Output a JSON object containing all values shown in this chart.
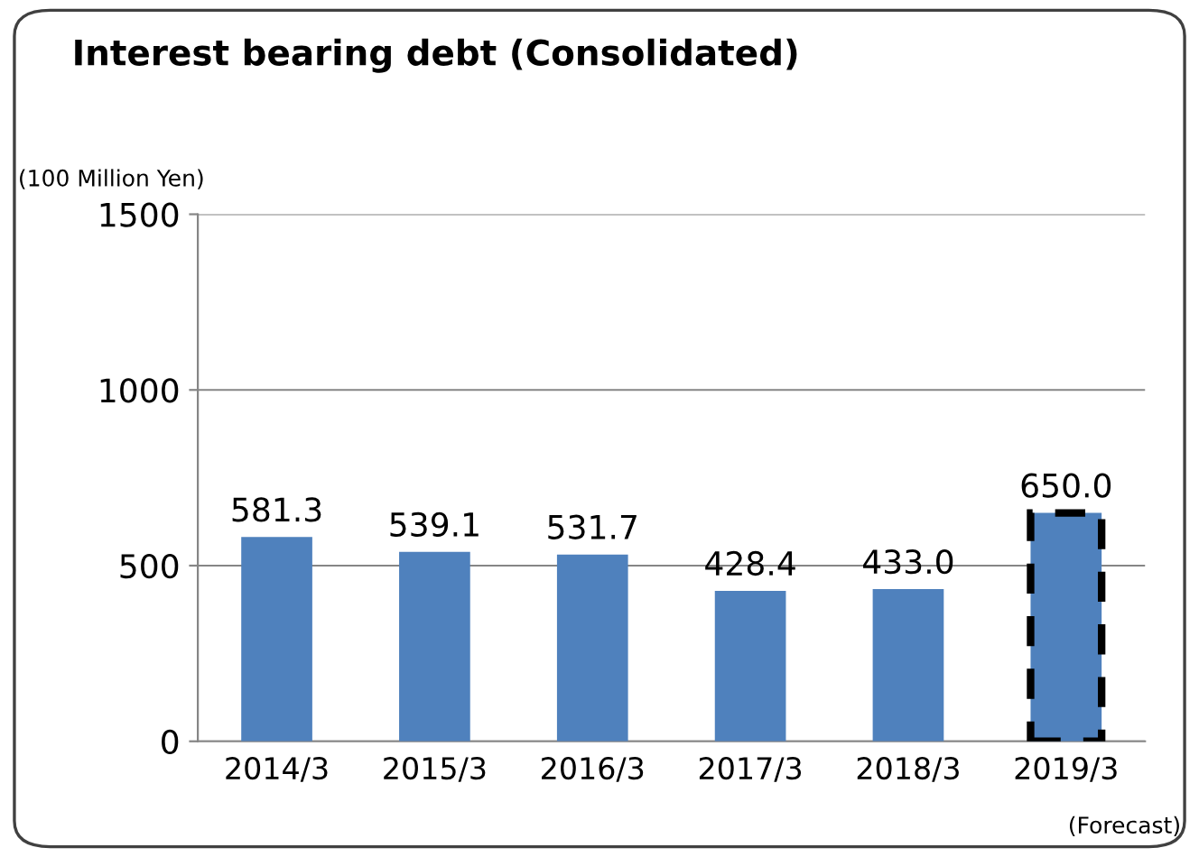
{
  "chart_data": {
    "type": "bar",
    "title": "Interest bearing debt (Consolidated)",
    "ylabel": "(100 Million Yen)",
    "categories": [
      "2014/3",
      "2015/3",
      "2016/3",
      "2017/3",
      "2018/3",
      "2019/3"
    ],
    "series": [
      {
        "color": "#4f81bd",
        "values": [
          581.3,
          539.1,
          531.7,
          428.4,
          433.0,
          null
        ],
        "value_labels": [
          "581.3",
          "539.1",
          "531.7",
          "428.4",
          "433.0",
          null
        ]
      },
      {
        "color": "#4f81bd",
        "values": [
          null,
          null,
          null,
          null,
          null,
          650.0
        ],
        "value_labels": [
          null,
          null,
          null,
          null,
          null,
          "650.0"
        ],
        "line_style": "dashed"
      }
    ],
    "ylim": [
      0,
      1500
    ],
    "yticks": [
      0,
      500,
      1000,
      1500
    ],
    "grid": "y",
    "annotations": [
      "(Forecast)"
    ]
  }
}
